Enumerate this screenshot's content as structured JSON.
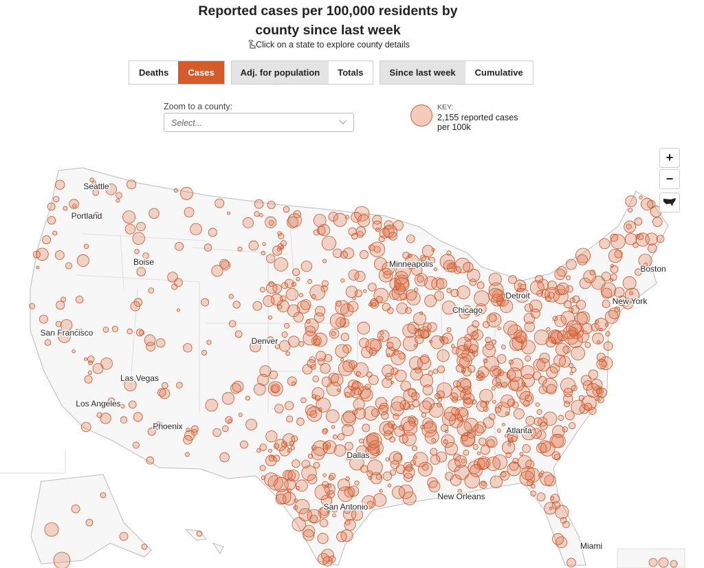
{
  "header": {
    "title": "Reported cases per 100,000 residents by county since last week",
    "instruction": "Click on a state to explore county details"
  },
  "toggles": [
    [
      {
        "label": "Deaths",
        "active": false
      },
      {
        "label": "Cases",
        "active": true
      }
    ],
    [
      {
        "label": "Adj. for population",
        "active": true
      },
      {
        "label": "Totals",
        "active": false
      }
    ],
    [
      {
        "label": "Since last week",
        "active": true
      },
      {
        "label": "Cumulative",
        "active": false
      }
    ]
  ],
  "zoom": {
    "label": "Zoom to a county:",
    "placeholder": "Select..."
  },
  "key": {
    "label": "KEY:",
    "text": "2,155 reported cases per 100k"
  },
  "map": {
    "cities": [
      "Seattle",
      "Portland",
      "Boise",
      "San Francisco",
      "Las Vegas",
      "Los Angeles",
      "Phoenix",
      "Denver",
      "Minneapolis",
      "Chicago",
      "Detroit",
      "Boston",
      "New York",
      "Dallas",
      "San Antonio",
      "New Orleans",
      "Atlanta",
      "Miami"
    ],
    "controls": [
      "+",
      "−"
    ]
  }
}
